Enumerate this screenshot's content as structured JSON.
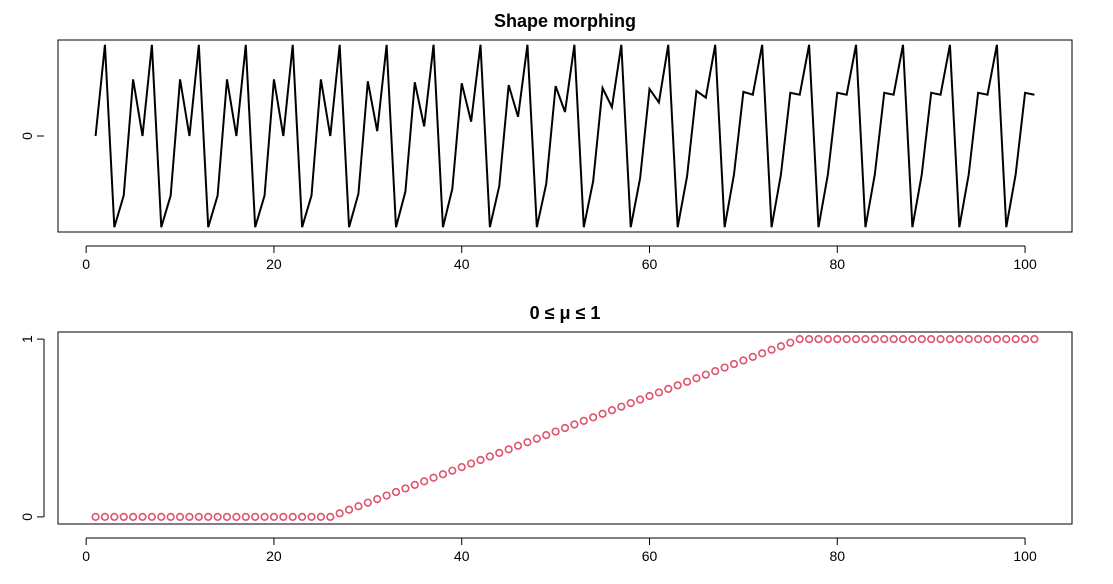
{
  "chart_data": [
    {
      "type": "line",
      "title": "Shape morphing",
      "xlabel": "",
      "ylabel": "",
      "xlim": [
        1,
        101
      ],
      "ylim": [
        -1,
        1
      ],
      "x_ticks": [
        0,
        20,
        40,
        60,
        80,
        100
      ],
      "y_ticks": [
        0
      ],
      "color": "#000000",
      "series": [
        {
          "x": [
            1,
            2,
            3,
            4,
            5,
            6,
            7,
            8,
            9,
            10,
            11,
            12,
            13,
            14,
            15,
            16,
            17,
            18,
            19,
            20,
            21,
            22,
            23,
            24,
            25,
            26,
            27,
            28,
            29,
            30,
            31,
            32,
            33,
            34,
            35,
            36,
            37,
            38,
            39,
            40,
            41,
            42,
            43,
            44,
            45,
            46,
            47,
            48,
            49,
            50,
            51,
            52,
            53,
            54,
            55,
            56,
            57,
            58,
            59,
            60,
            61,
            62,
            63,
            64,
            65,
            66,
            67,
            68,
            69,
            70,
            71,
            72,
            73,
            74,
            75,
            76,
            77,
            78,
            79,
            80,
            81,
            82,
            83,
            84,
            85,
            86,
            87,
            88,
            89,
            90,
            91,
            92,
            93,
            94,
            95,
            96,
            97,
            98,
            99,
            100,
            101
          ],
          "y": [
            0,
            0.95,
            -0.95,
            -0.62,
            0.59,
            0,
            0.95,
            -0.95,
            -0.62,
            0.59,
            0,
            0.95,
            -0.95,
            -0.62,
            0.59,
            0,
            0.95,
            -0.95,
            -0.62,
            0.59,
            0,
            0.95,
            -0.95,
            -0.62,
            0.59,
            0,
            0.95,
            -0.95,
            -0.6,
            0.57,
            0.05,
            0.95,
            -0.95,
            -0.58,
            0.56,
            0.1,
            0.95,
            -0.95,
            -0.55,
            0.55,
            0.15,
            0.95,
            -0.95,
            -0.52,
            0.53,
            0.2,
            0.95,
            -0.95,
            -0.5,
            0.52,
            0.25,
            0.95,
            -0.95,
            -0.47,
            0.5,
            0.3,
            0.95,
            -0.95,
            -0.44,
            0.49,
            0.35,
            0.95,
            -0.95,
            -0.42,
            0.47,
            0.4,
            0.95,
            -0.95,
            -0.4,
            0.46,
            0.43,
            0.95,
            -0.95,
            -0.4,
            0.45,
            0.43,
            0.95,
            -0.95,
            -0.4,
            0.45,
            0.43,
            0.95,
            -0.95,
            -0.4,
            0.45,
            0.43,
            0.95,
            -0.95,
            -0.4,
            0.45,
            0.43,
            0.95,
            -0.95,
            -0.4,
            0.45,
            0.43,
            0.95,
            -0.95,
            -0.4,
            0.45,
            0.43
          ]
        }
      ]
    },
    {
      "type": "scatter",
      "title": "0 ≤ μ ≤ 1",
      "xlabel": "",
      "ylabel": "",
      "xlim": [
        1,
        101
      ],
      "ylim": [
        0,
        1
      ],
      "x_ticks": [
        0,
        20,
        40,
        60,
        80,
        100
      ],
      "y_ticks": [
        0,
        1
      ],
      "color": "#DF536B",
      "marker": "open-circle",
      "series": [
        {
          "x": [
            1,
            2,
            3,
            4,
            5,
            6,
            7,
            8,
            9,
            10,
            11,
            12,
            13,
            14,
            15,
            16,
            17,
            18,
            19,
            20,
            21,
            22,
            23,
            24,
            25,
            26,
            27,
            28,
            29,
            30,
            31,
            32,
            33,
            34,
            35,
            36,
            37,
            38,
            39,
            40,
            41,
            42,
            43,
            44,
            45,
            46,
            47,
            48,
            49,
            50,
            51,
            52,
            53,
            54,
            55,
            56,
            57,
            58,
            59,
            60,
            61,
            62,
            63,
            64,
            65,
            66,
            67,
            68,
            69,
            70,
            71,
            72,
            73,
            74,
            75,
            76,
            77,
            78,
            79,
            80,
            81,
            82,
            83,
            84,
            85,
            86,
            87,
            88,
            89,
            90,
            91,
            92,
            93,
            94,
            95,
            96,
            97,
            98,
            99,
            100,
            101
          ],
          "y": [
            0,
            0,
            0,
            0,
            0,
            0,
            0,
            0,
            0,
            0,
            0,
            0,
            0,
            0,
            0,
            0,
            0,
            0,
            0,
            0,
            0,
            0,
            0,
            0,
            0,
            0,
            0.02,
            0.04,
            0.06,
            0.08,
            0.1,
            0.12,
            0.14,
            0.16,
            0.18,
            0.2,
            0.22,
            0.24,
            0.26,
            0.28,
            0.3,
            0.32,
            0.34,
            0.36,
            0.38,
            0.4,
            0.42,
            0.44,
            0.46,
            0.48,
            0.5,
            0.52,
            0.54,
            0.56,
            0.58,
            0.6,
            0.62,
            0.64,
            0.66,
            0.68,
            0.7,
            0.72,
            0.74,
            0.76,
            0.78,
            0.8,
            0.82,
            0.84,
            0.86,
            0.88,
            0.9,
            0.92,
            0.94,
            0.96,
            0.98,
            1,
            1,
            1,
            1,
            1,
            1,
            1,
            1,
            1,
            1,
            1,
            1,
            1,
            1,
            1,
            1,
            1,
            1,
            1,
            1,
            1,
            1,
            1,
            1,
            1,
            1
          ]
        }
      ]
    }
  ]
}
